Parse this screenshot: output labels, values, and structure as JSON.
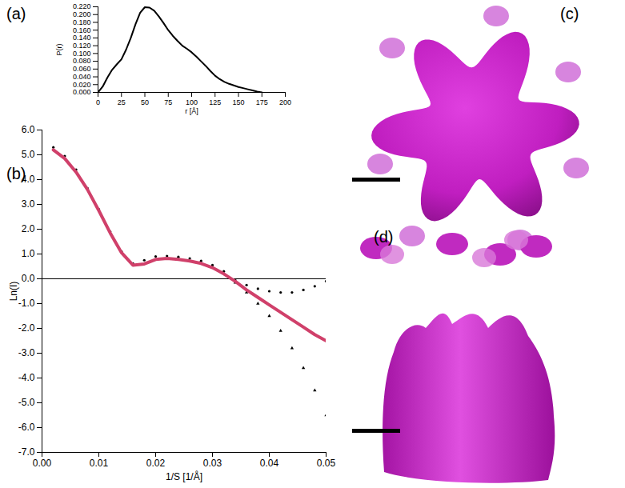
{
  "chart_data": [
    {
      "type": "line",
      "title": "(a)",
      "x_label": "r [Å]",
      "y_label": "P(r)",
      "color": "#000000",
      "x": [
        0,
        5,
        10,
        15,
        20,
        25,
        30,
        35,
        40,
        45,
        50,
        55,
        60,
        65,
        70,
        75,
        80,
        85,
        90,
        95,
        100,
        105,
        110,
        115,
        120,
        125,
        130,
        135,
        140,
        145,
        150,
        155,
        160,
        165,
        170,
        175
      ],
      "values": [
        0,
        0.015,
        0.038,
        0.058,
        0.072,
        0.085,
        0.11,
        0.14,
        0.175,
        0.205,
        0.219,
        0.218,
        0.21,
        0.195,
        0.178,
        0.16,
        0.145,
        0.132,
        0.12,
        0.112,
        0.103,
        0.092,
        0.08,
        0.068,
        0.055,
        0.043,
        0.034,
        0.027,
        0.022,
        0.018,
        0.014,
        0.011,
        0.008,
        0.005,
        0.002,
        0
      ],
      "xlim": [
        0,
        200
      ],
      "xticks": [
        0,
        25,
        50,
        75,
        100,
        125,
        150,
        175,
        200
      ],
      "ylim": [
        0,
        0.22
      ],
      "yticks": [
        {
          "value": 0,
          "label": "0.000"
        },
        {
          "value": 0.02,
          "label": "0.020"
        },
        {
          "value": 0.04,
          "label": "0.040"
        },
        {
          "value": 0.06,
          "label": "0.060"
        },
        {
          "value": 0.08,
          "label": "0.080"
        },
        {
          "value": 0.1,
          "label": "0.100"
        },
        {
          "value": 0.12,
          "label": "0.120"
        },
        {
          "value": 0.14,
          "label": "0.140"
        },
        {
          "value": 0.16,
          "label": "0.160"
        },
        {
          "value": 0.18,
          "label": "0.180"
        },
        {
          "value": 0.2,
          "label": "0.200"
        },
        {
          "value": 0.22,
          "label": "0.220"
        }
      ]
    },
    {
      "type": "line",
      "title": "(b)",
      "x_label": "1/S [1/Å]",
      "y_label": "Ln(I)",
      "reference_line": 0,
      "x": [
        0.002,
        0.004,
        0.006,
        0.008,
        0.01,
        0.012,
        0.014,
        0.016,
        0.018,
        0.02,
        0.022,
        0.024,
        0.026,
        0.028,
        0.03,
        0.032,
        0.034,
        0.036,
        0.038,
        0.04,
        0.042,
        0.044,
        0.046,
        0.048,
        0.05
      ],
      "series": [
        {
          "type": "scatter",
          "marker": "dot",
          "color": "#000000",
          "values": [
            5.3,
            4.95,
            4.4,
            3.65,
            2.8,
            1.9,
            1.1,
            0.62,
            0.75,
            0.9,
            0.92,
            0.88,
            0.82,
            0.72,
            0.55,
            0.3,
            -0.05,
            -0.25,
            -0.4,
            -0.5,
            -0.55,
            -0.55,
            -0.45,
            -0.3,
            -0.1
          ]
        },
        {
          "type": "scatter",
          "marker": "triangle",
          "color": "#000000",
          "values": [
            null,
            null,
            null,
            null,
            null,
            null,
            null,
            null,
            null,
            null,
            null,
            null,
            null,
            null,
            null,
            null,
            -0.15,
            -0.55,
            -1.0,
            -1.5,
            -2.1,
            -2.8,
            -3.6,
            -4.5,
            -5.5
          ]
        },
        {
          "type": "line",
          "line_style": "solid",
          "color": "#d0406a",
          "values": [
            5.2,
            4.85,
            4.3,
            3.6,
            2.75,
            1.85,
            1.05,
            0.55,
            0.6,
            0.78,
            0.82,
            0.78,
            0.72,
            0.62,
            0.45,
            0.2,
            -0.1,
            -0.45,
            -0.75,
            -1.05,
            -1.35,
            -1.65,
            -1.95,
            -2.25,
            -2.5
          ]
        }
      ],
      "xlim": [
        0,
        0.05
      ],
      "xticks": [
        {
          "value": 0,
          "label": "0.00"
        },
        {
          "value": 0.01,
          "label": "0.01"
        },
        {
          "value": 0.02,
          "label": "0.02"
        },
        {
          "value": 0.03,
          "label": "0.03"
        },
        {
          "value": 0.04,
          "label": "0.04"
        },
        {
          "value": 0.05,
          "label": "0.05"
        }
      ],
      "ylim": [
        -7,
        6
      ],
      "yticks": [
        {
          "value": -7,
          "label": "-7.0"
        },
        {
          "value": -6,
          "label": "-6.0"
        },
        {
          "value": -5,
          "label": "-5.0"
        },
        {
          "value": -4,
          "label": "-4.0"
        },
        {
          "value": -3,
          "label": "-3.0"
        },
        {
          "value": -2,
          "label": "-2.0"
        },
        {
          "value": -1,
          "label": "-1.0"
        },
        {
          "value": 0,
          "label": "0.0"
        },
        {
          "value": 1,
          "label": "1.0"
        },
        {
          "value": 2,
          "label": "2.0"
        },
        {
          "value": 3,
          "label": "3.0"
        },
        {
          "value": 4,
          "label": "4.0"
        },
        {
          "value": 5,
          "label": "5.0"
        },
        {
          "value": 6,
          "label": "6.0"
        }
      ]
    }
  ],
  "images": [
    {
      "label": "(c)"
    },
    {
      "label": "(d)"
    }
  ]
}
